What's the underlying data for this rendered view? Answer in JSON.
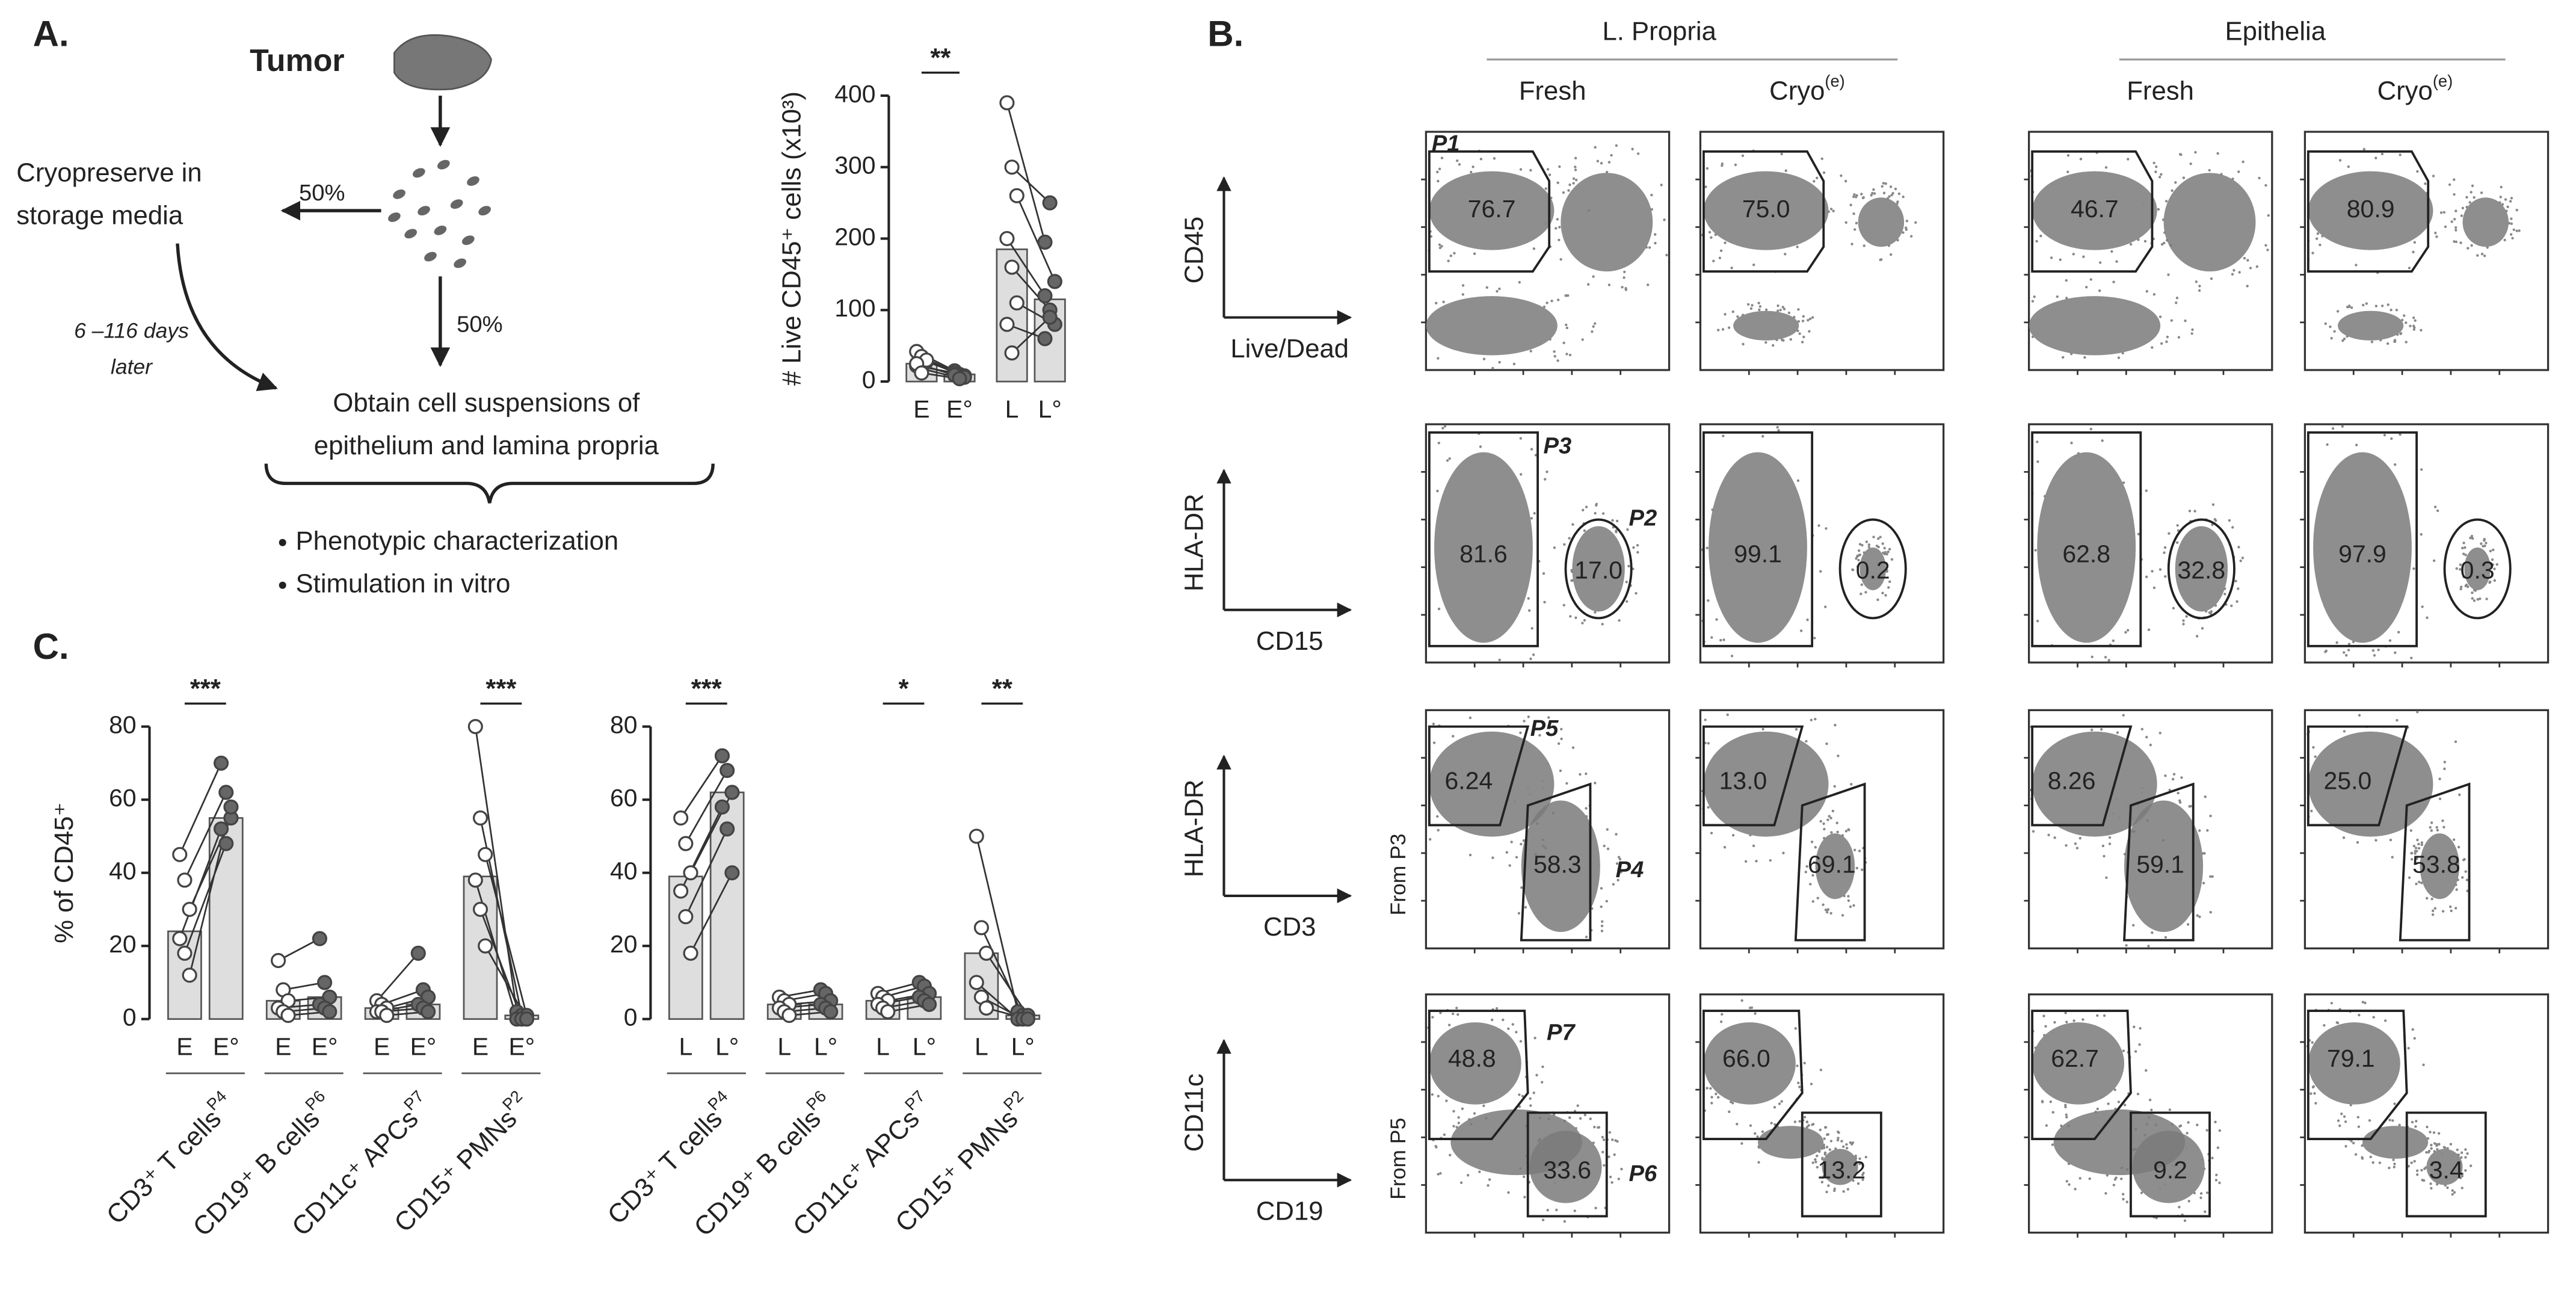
{
  "panel_labels": [
    "A.",
    "B.",
    "C."
  ],
  "diagram": {
    "tumor": "Tumor",
    "cryopreserve": [
      "Cryopreserve in",
      "storage media"
    ],
    "split_left": "50%",
    "split_down": "50%",
    "delay": [
      "6 –116 days",
      "later"
    ],
    "obtain": [
      "Obtain cell suspensions of",
      "epithelium and lamina propria"
    ],
    "bullets": [
      "Phenotypic characterization",
      "Stimulation in vitro"
    ]
  },
  "chart_data": [
    {
      "type": "bar",
      "y_label": "# Live CD45⁺ cells (x10³)",
      "categories": [
        "E",
        "E°",
        "L",
        "L°"
      ],
      "values": [
        25,
        10,
        185,
        115
      ],
      "points": [
        [
          42,
          35,
          28,
          22,
          18,
          30,
          25,
          12
        ],
        [
          15,
          10,
          8,
          12,
          5,
          6,
          9,
          4
        ],
        [
          390,
          300,
          260,
          200,
          160,
          110,
          80,
          40
        ],
        [
          195,
          250,
          140,
          120,
          100,
          80,
          60,
          90
        ]
      ],
      "significance": [
        "**",
        null
      ],
      "ylim": [
        0,
        400
      ],
      "yticks": [
        0,
        100,
        200,
        300,
        400
      ],
      "bar_color": "#dedede",
      "point_colors": [
        "#ffffff",
        "#666666"
      ]
    },
    {
      "type": "bar",
      "y_label": "% of CD45⁺",
      "categories": [
        "E",
        "E°",
        "E",
        "E°",
        "E",
        "E°",
        "E",
        "E°"
      ],
      "groups": [
        {
          "name": "CD3⁺ T cells",
          "gate": "P4"
        },
        {
          "name": "CD19⁺ B cells",
          "gate": "P6"
        },
        {
          "name": "CD11c⁺ APCs",
          "gate": "P7"
        },
        {
          "name": "CD15⁺ PMNs",
          "gate": "P2"
        }
      ],
      "values": [
        24,
        55,
        5,
        6,
        3,
        4,
        39,
        1
      ],
      "points": [
        [
          45,
          38,
          30,
          22,
          18,
          12
        ],
        [
          70,
          62,
          55,
          52,
          48,
          58
        ],
        [
          16,
          8,
          5,
          3,
          2,
          1
        ],
        [
          22,
          10,
          6,
          4,
          3,
          2
        ],
        [
          5,
          4,
          3,
          2,
          2,
          1
        ],
        [
          18,
          8,
          6,
          4,
          3,
          2
        ],
        [
          80,
          55,
          45,
          38,
          30,
          20
        ],
        [
          2,
          1,
          1,
          0,
          0,
          0
        ]
      ],
      "significance": [
        "***",
        null,
        null,
        "***"
      ],
      "ylim": [
        0,
        80
      ],
      "yticks": [
        0,
        20,
        40,
        60,
        80
      ],
      "bar_color": "#dedede",
      "point_colors": [
        "#ffffff",
        "#666666"
      ]
    },
    {
      "type": "bar",
      "categories": [
        "L",
        "L°",
        "L",
        "L°",
        "L",
        "L°",
        "L",
        "L°"
      ],
      "groups": [
        {
          "name": "CD3⁺ T cells",
          "gate": "P4"
        },
        {
          "name": "CD19⁺ B cells",
          "gate": "P6"
        },
        {
          "name": "CD11c⁺ APCs",
          "gate": "P7"
        },
        {
          "name": "CD15⁺ PMNs",
          "gate": "P2"
        }
      ],
      "values": [
        39,
        62,
        4,
        4,
        5,
        6,
        18,
        1
      ],
      "points": [
        [
          55,
          48,
          40,
          35,
          28,
          18
        ],
        [
          72,
          68,
          62,
          58,
          52,
          40
        ],
        [
          6,
          5,
          4,
          3,
          2,
          1
        ],
        [
          8,
          7,
          5,
          4,
          3,
          2
        ],
        [
          7,
          6,
          5,
          4,
          3,
          2
        ],
        [
          10,
          9,
          7,
          6,
          5,
          4
        ],
        [
          50,
          25,
          18,
          10,
          6,
          3
        ],
        [
          2,
          1,
          1,
          0,
          0,
          0
        ]
      ],
      "significance": [
        "***",
        null,
        "*",
        "**"
      ],
      "ylim": [
        0,
        80
      ],
      "yticks": [
        0,
        20,
        40,
        60,
        80
      ],
      "bar_color": "#dedede",
      "point_colors": [
        "#ffffff",
        "#666666"
      ]
    }
  ],
  "panel_b": {
    "groups": [
      "L. Propria",
      "Epithelia"
    ],
    "columns": [
      {
        "text": "Fresh"
      },
      {
        "text": "Cryo",
        "sup": "(e)"
      },
      {
        "text": "Fresh"
      },
      {
        "text": "Cryo",
        "sup": "(e)"
      }
    ],
    "rows": [
      {
        "y_axis": "CD45",
        "x_axis": "Live/Dead",
        "gates": [
          {
            "name": "P1",
            "values": [
              "76.7",
              "75.0",
              "46.7",
              "80.9"
            ]
          }
        ]
      },
      {
        "y_axis": "HLA-DR",
        "x_axis": "CD15",
        "gates": [
          {
            "name": "P3",
            "values": [
              "81.6",
              "99.1",
              "62.8",
              "97.9"
            ]
          },
          {
            "name": "P2",
            "values": [
              "17.0",
              "0.2",
              "32.8",
              "0.3"
            ]
          }
        ]
      },
      {
        "y_axis": "HLA-DR",
        "x_axis": "CD3",
        "parent": "From P3",
        "gates": [
          {
            "name": "P5",
            "values": [
              "6.24",
              "13.0",
              "8.26",
              "25.0"
            ]
          },
          {
            "name": "P4",
            "values": [
              "58.3",
              "69.1",
              "59.1",
              "53.8"
            ]
          }
        ]
      },
      {
        "y_axis": "CD11c",
        "x_axis": "CD19",
        "parent": "From P5",
        "gates": [
          {
            "name": "P7",
            "values": [
              "48.8",
              "66.0",
              "62.7",
              "79.1"
            ]
          },
          {
            "name": "P6",
            "values": [
              "33.6",
              "13.2",
              "9.2",
              "3.4"
            ]
          }
        ]
      }
    ]
  }
}
